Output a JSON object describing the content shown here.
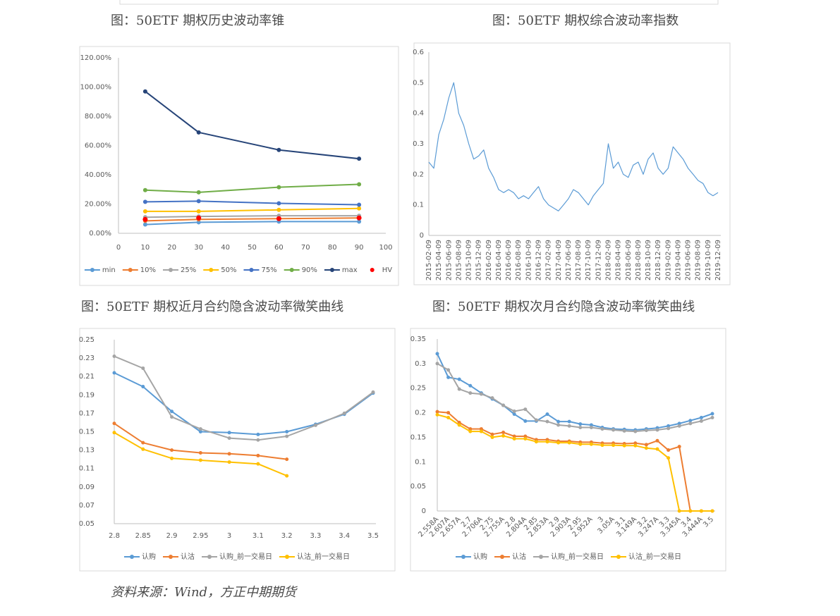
{
  "chart_data": [
    {
      "type": "line",
      "title": "图：50ETF 期权历史波动率锥",
      "x": [
        10,
        30,
        60,
        90
      ],
      "xlim": [
        0,
        100
      ],
      "xticks": [
        0,
        10,
        20,
        30,
        40,
        50,
        60,
        70,
        80,
        90,
        100
      ],
      "ylim": [
        0,
        120
      ],
      "yticks": [
        {
          "value": 0,
          "label": "0.00%"
        },
        {
          "value": 20,
          "label": "20.00%"
        },
        {
          "value": 40,
          "label": "40.00%"
        },
        {
          "value": 60,
          "label": "60.00%"
        },
        {
          "value": 80,
          "label": "80.00%"
        },
        {
          "value": 100,
          "label": "100.00%"
        },
        {
          "value": 120,
          "label": "120.00%"
        }
      ],
      "grid": false,
      "markers": true,
      "legend": "bottom",
      "series": [
        {
          "name": "min",
          "color": "#5b9bd5",
          "values": [
            6,
            7.5,
            8,
            8
          ]
        },
        {
          "name": "10%",
          "color": "#ed7d31",
          "values": [
            8.5,
            9.5,
            10,
            10.5
          ]
        },
        {
          "name": "25%",
          "color": "#a5a5a5",
          "values": [
            11,
            11.5,
            12,
            12
          ]
        },
        {
          "name": "50%",
          "color": "#ffc000",
          "values": [
            15,
            15,
            16,
            17
          ]
        },
        {
          "name": "75%",
          "color": "#4472c4",
          "values": [
            21.5,
            22,
            20.5,
            19.5
          ]
        },
        {
          "name": "90%",
          "color": "#70ad47",
          "values": [
            29.5,
            28,
            31.5,
            33.5
          ]
        },
        {
          "name": "max",
          "color": "#264478",
          "values": [
            97,
            69,
            57,
            51
          ]
        },
        {
          "name": "HV",
          "color": "#ff0000",
          "show_line": false,
          "values": [
            9.5,
            10.5,
            10,
            10.5
          ]
        }
      ]
    },
    {
      "type": "line",
      "title": "图：50ETF 期权综合波动率指数",
      "categories": [
        "2015-02-09",
        "2015-03-09",
        "2015-04-09",
        "2015-05-09",
        "2015-06-09",
        "2015-07-09",
        "2015-08-09",
        "2015-09-09",
        "2015-10-09",
        "2015-11-09",
        "2015-12-09",
        "2016-01-09",
        "2016-02-09",
        "2016-03-09",
        "2016-04-09",
        "2016-05-09",
        "2016-06-09",
        "2016-07-09",
        "2016-08-09",
        "2016-09-09",
        "2016-10-09",
        "2016-11-09",
        "2016-12-09",
        "2017-01-09",
        "2017-02-09",
        "2017-03-09",
        "2017-04-09",
        "2017-05-09",
        "2017-06-09",
        "2017-07-09",
        "2017-08-09",
        "2017-09-09",
        "2017-10-09",
        "2017-11-09",
        "2017-12-09",
        "2018-01-09",
        "2018-02-09",
        "2018-03-09",
        "2018-04-09",
        "2018-05-09",
        "2018-06-09",
        "2018-07-09",
        "2018-08-09",
        "2018-09-09",
        "2018-10-09",
        "2018-11-09",
        "2018-12-09",
        "2019-01-09",
        "2019-02-09",
        "2019-03-09",
        "2019-04-09",
        "2019-05-09",
        "2019-06-09",
        "2019-07-09",
        "2019-08-09",
        "2019-09-09",
        "2019-10-09",
        "2019-11-09",
        "2019-12-09"
      ],
      "xticks": [
        "2015-02-09",
        "2015-04-09",
        "2015-06-09",
        "2015-08-09",
        "2015-10-09",
        "2015-12-09",
        "2016-02-09",
        "2016-04-09",
        "2016-06-09",
        "2016-08-09",
        "2016-10-09",
        "2016-12-09",
        "2017-02-09",
        "2017-04-09",
        "2017-06-09",
        "2017-08-09",
        "2017-10-09",
        "2017-12-09",
        "2018-02-09",
        "2018-04-09",
        "2018-06-09",
        "2018-08-09",
        "2018-10-09",
        "2018-12-09",
        "2019-02-09",
        "2019-04-09",
        "2019-06-09",
        "2019-08-09",
        "2019-10-09",
        "2019-12-09"
      ],
      "ylim": [
        0,
        0.6
      ],
      "yticks": [
        0,
        0.1,
        0.2,
        0.3,
        0.4,
        0.5,
        0.6
      ],
      "grid": false,
      "markers": false,
      "series": [
        {
          "color": "#5b9bd5",
          "values": [
            0.24,
            0.22,
            0.33,
            0.38,
            0.45,
            0.5,
            0.4,
            0.36,
            0.3,
            0.25,
            0.26,
            0.28,
            0.22,
            0.19,
            0.15,
            0.14,
            0.15,
            0.14,
            0.12,
            0.13,
            0.12,
            0.14,
            0.16,
            0.12,
            0.1,
            0.09,
            0.08,
            0.1,
            0.12,
            0.15,
            0.14,
            0.12,
            0.1,
            0.13,
            0.15,
            0.17,
            0.3,
            0.22,
            0.24,
            0.2,
            0.19,
            0.23,
            0.24,
            0.2,
            0.25,
            0.27,
            0.22,
            0.2,
            0.22,
            0.29,
            0.27,
            0.25,
            0.22,
            0.2,
            0.18,
            0.17,
            0.14,
            0.13,
            0.14
          ]
        }
      ]
    },
    {
      "type": "line",
      "title": "图：50ETF 期权近月合约隐含波动率微笑曲线",
      "categories": [
        "2.8",
        "2.85",
        "2.9",
        "2.95",
        "3",
        "3.1",
        "3.2",
        "3.3",
        "3.4",
        "3.5"
      ],
      "ylim": [
        0.05,
        0.25
      ],
      "yticks": [
        0.05,
        0.07,
        0.09,
        0.11,
        0.13,
        0.15,
        0.17,
        0.19,
        0.21,
        0.23,
        0.25
      ],
      "grid": false,
      "markers": true,
      "legend": "bottom",
      "series": [
        {
          "name": "认购",
          "color": "#5b9bd5",
          "values": [
            0.214,
            0.199,
            0.172,
            0.15,
            0.149,
            0.147,
            0.15,
            0.158,
            0.169,
            0.192
          ]
        },
        {
          "name": "认沽",
          "color": "#ed7d31",
          "values": [
            0.159,
            0.138,
            0.13,
            0.127,
            0.126,
            0.124,
            0.12,
            null,
            null,
            null
          ]
        },
        {
          "name": "认购_前一交易日",
          "color": "#a5a5a5",
          "values": [
            0.232,
            0.219,
            0.166,
            0.153,
            0.143,
            0.141,
            0.145,
            0.157,
            0.17,
            0.193
          ]
        },
        {
          "name": "认沽_前一交易日",
          "color": "#ffc000",
          "values": [
            0.149,
            0.131,
            0.121,
            0.119,
            0.117,
            0.115,
            0.102,
            null,
            null,
            null
          ]
        }
      ]
    },
    {
      "type": "line",
      "title": "图：50ETF 期权次月合约隐含波动率微笑曲线",
      "categories": [
        "2.558A",
        "2.607A",
        "2.657A",
        "2.7",
        "2.706A",
        "2.75",
        "2.755A",
        "2.8",
        "2.804A",
        "2.85",
        "2.853A",
        "2.9",
        "2.903A",
        "2.95",
        "2.952A",
        "3",
        "3.05A",
        "3.1",
        "3.149A",
        "3.2",
        "3.247A",
        "3.3",
        "3.345A",
        "3.4",
        "3.444A",
        "3.5"
      ],
      "ylim": [
        0,
        0.35
      ],
      "yticks": [
        0,
        0.05,
        0.1,
        0.15,
        0.2,
        0.25,
        0.3,
        0.35
      ],
      "grid": false,
      "markers": true,
      "legend": "bottom",
      "series": [
        {
          "name": "认购",
          "color": "#5b9bd5",
          "values": [
            0.32,
            0.272,
            0.268,
            0.255,
            0.24,
            0.228,
            0.215,
            0.197,
            0.183,
            0.183,
            0.197,
            0.182,
            0.182,
            0.177,
            0.175,
            0.17,
            0.167,
            0.166,
            0.165,
            0.167,
            0.169,
            0.173,
            0.178,
            0.184,
            0.19,
            0.198
          ]
        },
        {
          "name": "认沽",
          "color": "#ed7d31",
          "values": [
            0.202,
            0.2,
            0.18,
            0.167,
            0.167,
            0.156,
            0.16,
            0.152,
            0.152,
            0.145,
            0.145,
            0.142,
            0.142,
            0.14,
            0.14,
            0.138,
            0.138,
            0.137,
            0.138,
            0.135,
            0.143,
            0.124,
            0.131,
            0,
            0,
            0
          ]
        },
        {
          "name": "认购_前一交易日",
          "color": "#a5a5a5",
          "values": [
            0.3,
            0.287,
            0.248,
            0.24,
            0.238,
            0.23,
            0.215,
            0.203,
            0.207,
            0.185,
            0.182,
            0.175,
            0.173,
            0.17,
            0.17,
            0.167,
            0.165,
            0.163,
            0.162,
            0.164,
            0.165,
            0.168,
            0.173,
            0.178,
            0.183,
            0.19
          ]
        },
        {
          "name": "认沽_前一交易日",
          "color": "#ffc000",
          "values": [
            0.196,
            0.19,
            0.175,
            0.162,
            0.162,
            0.15,
            0.153,
            0.147,
            0.147,
            0.141,
            0.141,
            0.139,
            0.139,
            0.136,
            0.136,
            0.134,
            0.134,
            0.133,
            0.133,
            0.128,
            0.126,
            0.108,
            0,
            0,
            0,
            0
          ]
        }
      ]
    }
  ],
  "source": "资料来源：Wind，方正中期期货"
}
